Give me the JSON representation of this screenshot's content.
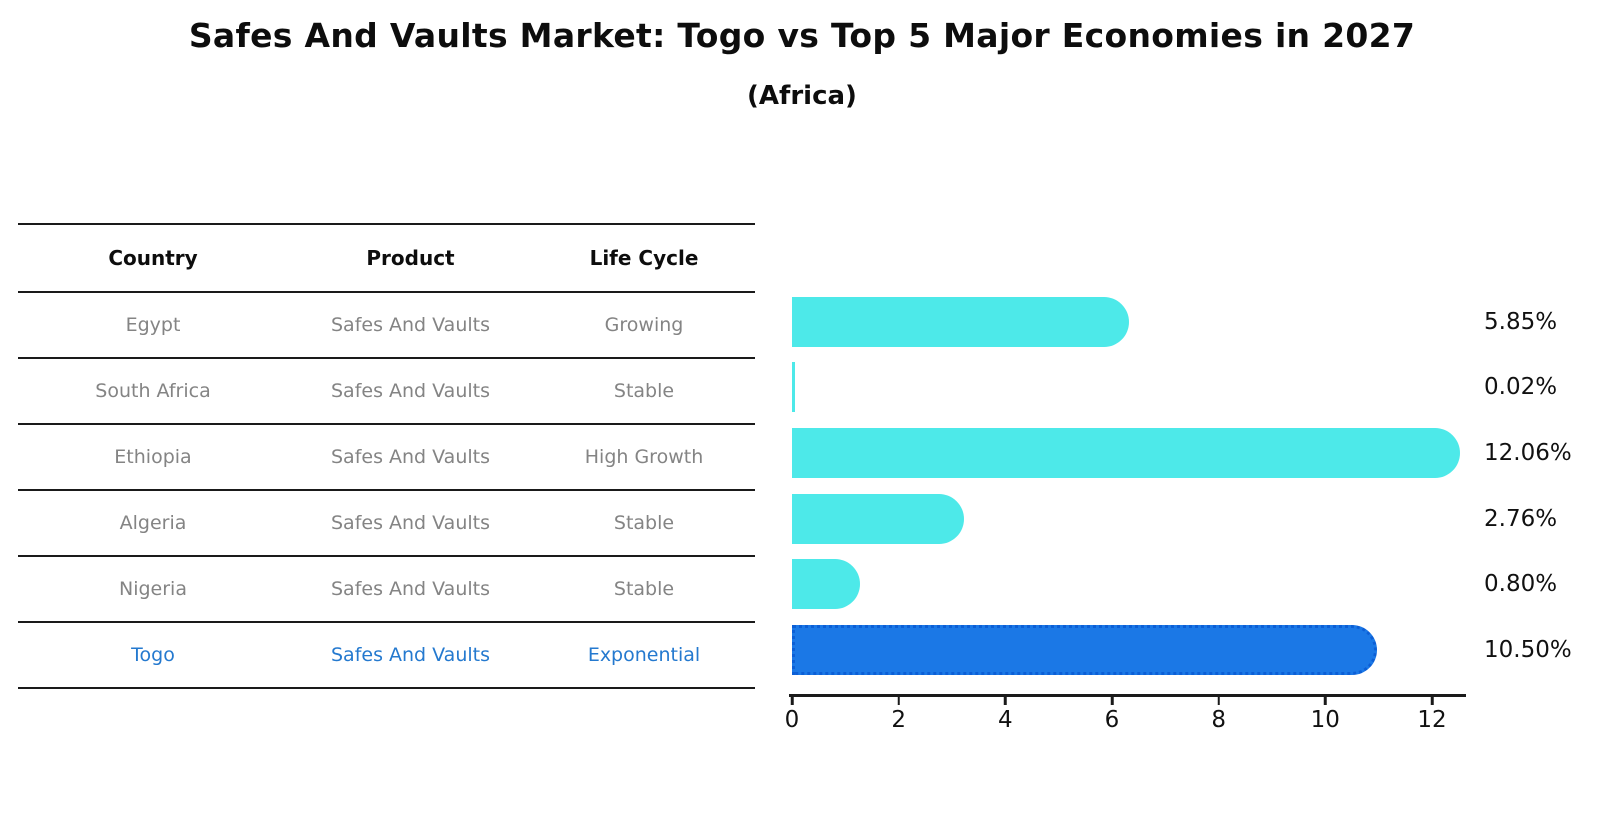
{
  "title": "Safes And Vaults Market: Togo vs Top 5 Major Economies in 2027",
  "subtitle": "(Africa)",
  "table": {
    "headers": {
      "country": "Country",
      "product": "Product",
      "life_cycle": "Life Cycle"
    },
    "rows": [
      {
        "country": "Egypt",
        "product": "Safes And Vaults",
        "life_cycle": "Growing",
        "highlight": false
      },
      {
        "country": "South Africa",
        "product": "Safes And Vaults",
        "life_cycle": "Stable",
        "highlight": false
      },
      {
        "country": "Ethiopia",
        "product": "Safes And Vaults",
        "life_cycle": "High Growth",
        "highlight": false
      },
      {
        "country": "Algeria",
        "product": "Safes And Vaults",
        "life_cycle": "Stable",
        "highlight": false
      },
      {
        "country": "Nigeria",
        "product": "Safes And Vaults",
        "life_cycle": "Stable",
        "highlight": false
      },
      {
        "country": "Togo",
        "product": "Safes And Vaults",
        "life_cycle": "Exponential",
        "highlight": true
      }
    ]
  },
  "chart_data": {
    "type": "bar",
    "orientation": "horizontal",
    "title": "Safes And Vaults Market: Togo vs Top 5 Major Economies in 2027",
    "subtitle": "(Africa)",
    "categories": [
      "Egypt",
      "South Africa",
      "Ethiopia",
      "Algeria",
      "Nigeria",
      "Togo"
    ],
    "values": [
      5.85,
      0.02,
      12.06,
      2.76,
      0.8,
      10.5
    ],
    "value_labels": [
      "5.85%",
      "0.02%",
      "12.06%",
      "2.76%",
      "0.80%",
      "10.50%"
    ],
    "xticks": [
      0,
      2,
      4,
      6,
      8,
      10,
      12
    ],
    "xlim": [
      0,
      12.6
    ],
    "grid": false,
    "legend": false,
    "bar_colors": [
      "#4de9e9",
      "#4de9e9",
      "#4de9e9",
      "#4de9e9",
      "#4de9e9",
      "#1b78e6"
    ],
    "highlight_index": 5
  },
  "colors": {
    "bar_cyan": "#4de9e9",
    "bar_blue": "#1b78e6",
    "highlight_text": "#2479cf",
    "cell_text": "#848484",
    "axis": "#1a1a1a"
  }
}
